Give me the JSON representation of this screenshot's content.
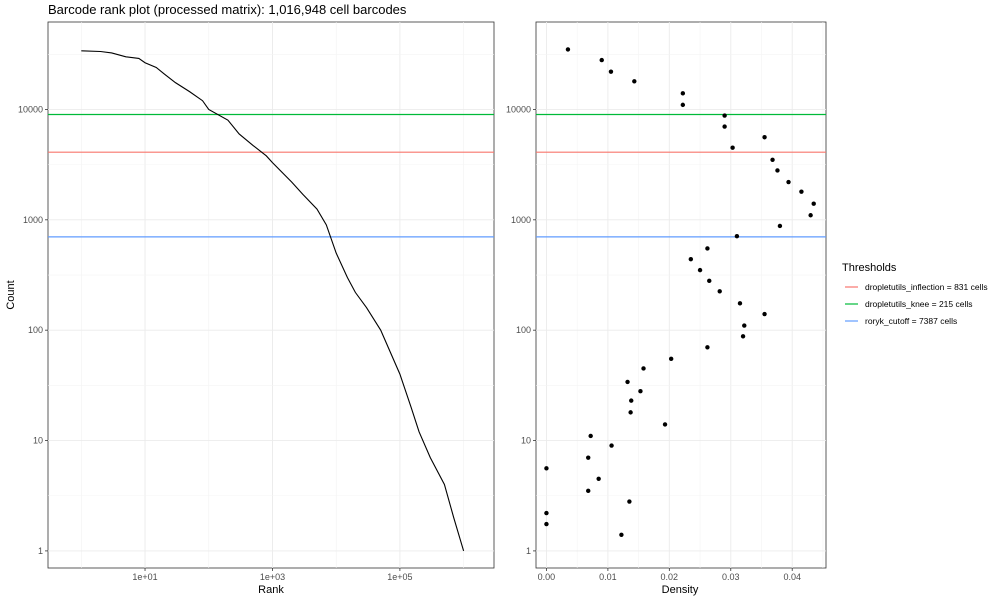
{
  "chart_data": [
    {
      "type": "line",
      "title": "Barcode rank plot (processed matrix): 1,016,948 cell barcodes",
      "xlabel": "Rank",
      "ylabel": "Count",
      "x_scale": "log10",
      "y_scale": "log10",
      "xlim": [
        0.3,
        3000000
      ],
      "ylim": [
        0.7,
        62000
      ],
      "grid": true,
      "x_ticks": [
        10,
        1000,
        100000
      ],
      "x_tick_labels": [
        "1e+01",
        "1e+03",
        "1e+05"
      ],
      "y_ticks": [
        1,
        10,
        100,
        1000,
        10000
      ],
      "y_tick_labels": [
        "1",
        "10",
        "100",
        "1000",
        "10000"
      ],
      "series": [
        {
          "x": [
            1,
            2,
            3,
            5,
            8,
            10,
            15,
            20,
            30,
            50,
            80,
            100,
            200,
            300,
            500,
            800,
            1000,
            2000,
            3000,
            5000,
            7000,
            10000,
            15000,
            20000,
            30000,
            50000,
            100000,
            150000,
            200000,
            300000,
            500000,
            700000,
            1000000
          ],
          "y": [
            34000,
            33500,
            32500,
            30000,
            29000,
            26500,
            24000,
            21000,
            17500,
            14500,
            12000,
            10000,
            8000,
            6000,
            4700,
            3800,
            3300,
            2200,
            1700,
            1250,
            900,
            500,
            300,
            220,
            160,
            100,
            40,
            20,
            12,
            7,
            4,
            2,
            1
          ]
        }
      ],
      "thresholds": [
        {
          "name": "dropletutils_inflection = 831 cells",
          "value": 4100,
          "color": "#f8766d"
        },
        {
          "name": "dropletutils_knee = 215 cells",
          "value": 9000,
          "color": "#00ba38"
        },
        {
          "name": "roryk_cutoff = 7387 cells",
          "value": 700,
          "color": "#619cff"
        }
      ]
    },
    {
      "type": "scatter",
      "title": "",
      "xlabel": "Density",
      "ylabel": "",
      "y_scale": "log10",
      "xlim": [
        -0.0017,
        0.0455
      ],
      "ylim": [
        0.7,
        62000
      ],
      "grid": true,
      "x_ticks": [
        0,
        0.01,
        0.02,
        0.03,
        0.04
      ],
      "x_tick_labels": [
        "0.00",
        "0.01",
        "0.02",
        "0.03",
        "0.04"
      ],
      "y_ticks": [
        1,
        10,
        100,
        1000,
        10000
      ],
      "y_tick_labels": [
        "1",
        "10",
        "100",
        "1000",
        "10000"
      ],
      "points": {
        "x": [
          0.0035,
          0.009,
          0.0105,
          0.0143,
          0.0222,
          0.0222,
          0.029,
          0.029,
          0.0303,
          0.0355,
          0.0368,
          0.0376,
          0.0394,
          0.0415,
          0.0435,
          0.043,
          0.038,
          0.031,
          0.0262,
          0.0235,
          0.025,
          0.0265,
          0.0282,
          0.0315,
          0.0322,
          0.0355,
          0.032,
          0.0262,
          0.0203,
          0.0158,
          0.0132,
          0.0153,
          0.0138,
          0.0137,
          0.0193,
          0.0106,
          0.0072,
          0.0068,
          0.0,
          0.0068,
          0.0135,
          0.0085,
          0.0,
          0.0,
          0.0122
        ],
        "y": [
          35000,
          28000,
          22000,
          18000,
          14000,
          11000,
          8800,
          7000,
          4500,
          5600,
          3500,
          2800,
          2200,
          1800,
          1400,
          1100,
          880,
          710,
          550,
          440,
          350,
          280,
          225,
          175,
          110,
          140,
          88,
          70,
          55,
          45,
          34,
          28,
          23,
          18,
          14,
          9,
          11,
          7,
          5.6,
          3.5,
          2.8,
          4.5,
          2.2,
          1.75,
          1.4
        ]
      },
      "thresholds": [
        {
          "name": "dropletutils_inflection = 831 cells",
          "value": 4100,
          "color": "#f8766d"
        },
        {
          "name": "dropletutils_knee = 215 cells",
          "value": 9000,
          "color": "#00ba38"
        },
        {
          "name": "roryk_cutoff = 7387 cells",
          "value": 700,
          "color": "#619cff"
        }
      ]
    }
  ],
  "legend": {
    "title": "Thresholds",
    "placement": "right",
    "items": [
      {
        "label": "dropletutils_inflection = 831 cells",
        "color": "#f8766d"
      },
      {
        "label": "dropletutils_knee = 215 cells",
        "color": "#00ba38"
      },
      {
        "label": "roryk_cutoff = 7387 cells",
        "color": "#619cff"
      }
    ]
  }
}
